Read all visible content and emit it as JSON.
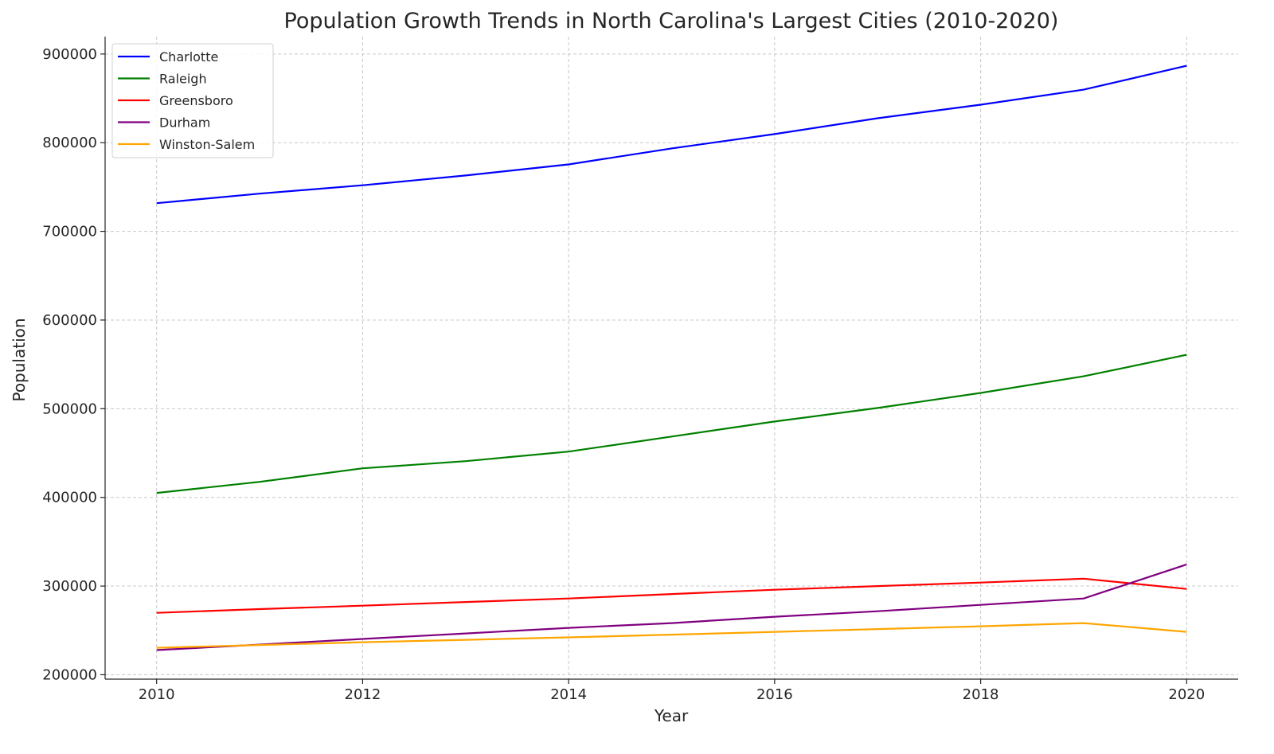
{
  "chart_data": {
    "type": "line",
    "title": "Population Growth Trends in North Carolina's Largest Cities (2010-2020)",
    "xlabel": "Year",
    "ylabel": "Population",
    "x": [
      2010,
      2011,
      2012,
      2013,
      2014,
      2015,
      2016,
      2017,
      2018,
      2019,
      2020
    ],
    "xlim": [
      2009.5,
      2020.5
    ],
    "ylim": [
      195000,
      919600
    ],
    "xticks": [
      2010,
      2012,
      2014,
      2016,
      2018,
      2020
    ],
    "yticks": [
      200000,
      300000,
      400000,
      500000,
      600000,
      700000,
      800000,
      900000
    ],
    "grid": true,
    "legend_position": "top-left",
    "series": [
      {
        "name": "Charlotte",
        "color": "#0000ff",
        "values": [
          731800,
          742500,
          752000,
          763000,
          775500,
          793500,
          809700,
          827600,
          842800,
          859800,
          886700
        ]
      },
      {
        "name": "Raleigh",
        "color": "#008000",
        "values": [
          405000,
          417500,
          432800,
          440800,
          451600,
          468600,
          485600,
          500800,
          517800,
          536600,
          560800
        ]
      },
      {
        "name": "Greensboro",
        "color": "#ff0000",
        "values": [
          269800,
          274000,
          277900,
          282000,
          286000,
          291000,
          295800,
          300000,
          303900,
          308300,
          296700
        ]
      },
      {
        "name": "Durham",
        "color": "#800080",
        "values": [
          227800,
          234000,
          240300,
          246500,
          252800,
          258200,
          265400,
          271600,
          278800,
          286000,
          324400
        ]
      },
      {
        "name": "Winston-Salem",
        "color": "#ffa500",
        "values": [
          230400,
          233500,
          236700,
          239400,
          242100,
          245200,
          248300,
          251500,
          254600,
          258200,
          248300
        ]
      }
    ]
  }
}
